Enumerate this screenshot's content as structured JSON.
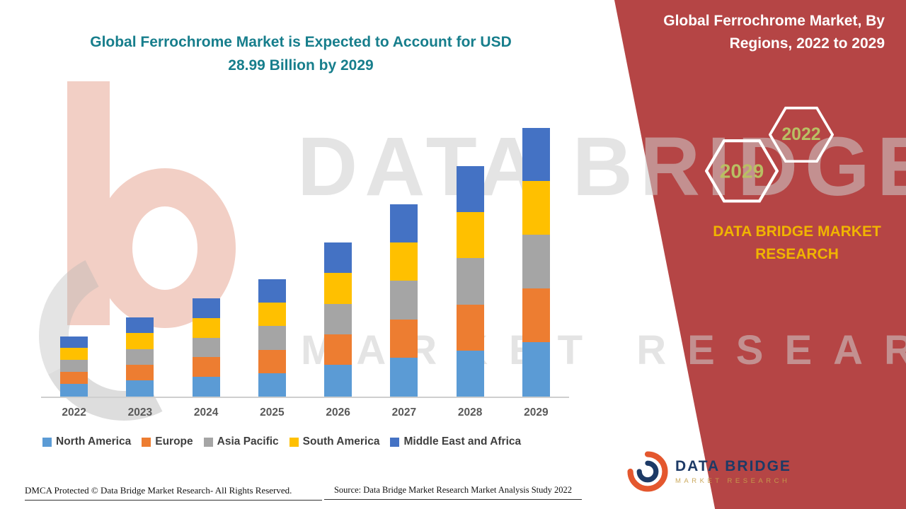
{
  "theme": {
    "panel_red": "#b54545",
    "title_teal": "#177e8c",
    "gold": "#f0b400",
    "hex_label": "#b9bf63",
    "watermark": "rgba(205,205,205,0.55)"
  },
  "header": {
    "title_line1": "Global Ferrochrome Market is Expected to Account for USD",
    "title_line2": "28.99 Billion by 2029"
  },
  "right_panel": {
    "heading": "Global Ferrochrome Market, By Regions, 2022 to 2029",
    "hexagons": [
      {
        "label": "2029"
      },
      {
        "label": "2022"
      }
    ],
    "brand_line1": "DATA BRIDGE MARKET",
    "brand_line2": "RESEARCH"
  },
  "logo": {
    "name": "DATA BRIDGE",
    "subtitle": "MARKET RESEARCH"
  },
  "watermark": {
    "line1": "DATA BRIDGE",
    "line2": "MARKET RESEARCH"
  },
  "footer": {
    "dmca": "DMCA Protected © Data Bridge Market Research- All Rights Reserved.",
    "source": "Source: Data Bridge Market Research Market Analysis Study 2022"
  },
  "chart_data": {
    "type": "bar",
    "stacked": true,
    "title": "Global Ferrochrome Market is Expected to Account for USD 28.99 Billion by 2029",
    "unit": "USD Billion",
    "categories": [
      "2022",
      "2023",
      "2024",
      "2025",
      "2026",
      "2027",
      "2028",
      "2029"
    ],
    "series": [
      {
        "name": "North America",
        "color": "#5b9bd5",
        "values": [
          1.35,
          1.75,
          2.15,
          2.55,
          3.4,
          4.2,
          5.0,
          5.85
        ]
      },
      {
        "name": "Europe",
        "color": "#ed7d31",
        "values": [
          1.3,
          1.7,
          2.1,
          2.5,
          3.3,
          4.15,
          4.95,
          5.8
        ]
      },
      {
        "name": "Asia Pacific",
        "color": "#a5a5a5",
        "values": [
          1.3,
          1.7,
          2.1,
          2.55,
          3.3,
          4.15,
          5.0,
          5.8
        ]
      },
      {
        "name": "South America",
        "color": "#ffc000",
        "values": [
          1.3,
          1.7,
          2.15,
          2.55,
          3.35,
          4.15,
          4.95,
          5.79
        ]
      },
      {
        "name": "Middle East and Africa",
        "color": "#4472c4",
        "values": [
          1.25,
          1.7,
          2.1,
          2.5,
          3.3,
          4.1,
          4.98,
          5.75
        ]
      }
    ],
    "totals": [
      6.5,
      8.55,
      10.6,
      12.65,
      16.65,
      20.75,
      24.88,
      28.99
    ],
    "ylim": [
      0,
      29
    ],
    "grid": false,
    "legend_position": "bottom"
  }
}
